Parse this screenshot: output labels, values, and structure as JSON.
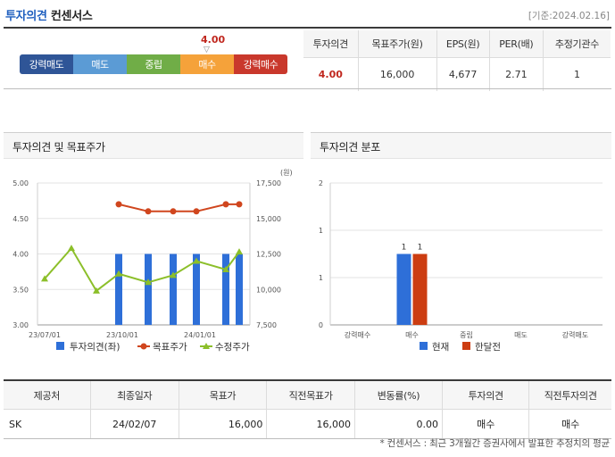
{
  "header": {
    "title_accent": "투자의견",
    "title_rest": "컨센서스",
    "date": "[기준:2024.02.16]"
  },
  "gauge": {
    "value": "4.00",
    "marker": "▽",
    "level": 4.0,
    "segments": [
      {
        "label": "강력매도",
        "color": "#2f5597"
      },
      {
        "label": "매도",
        "color": "#5b9bd5"
      },
      {
        "label": "중립",
        "color": "#70ad47"
      },
      {
        "label": "매수",
        "color": "#f5a23a"
      },
      {
        "label": "강력매수",
        "color": "#c9382c"
      }
    ]
  },
  "summary": {
    "headers": [
      "투자의견",
      "목표주가(원)",
      "EPS(원)",
      "PER(배)",
      "추정기관수"
    ],
    "values": [
      "4.00",
      "16,000",
      "4,677",
      "2.71",
      "1"
    ]
  },
  "panels": {
    "left_title": "투자의견 및 목표주가",
    "right_title": "투자의견 분포"
  },
  "chart_data": [
    {
      "type": "bar+line",
      "unit_right": "(원)",
      "x_ticks": [
        "23/07/01",
        "23/10/01",
        "24/01/01"
      ],
      "y_left_ticks": [
        "5.00",
        "4.50",
        "4.00",
        "3.50",
        "3.00"
      ],
      "y_left_range": [
        3.0,
        5.0
      ],
      "y_right_ticks": [
        "17,500",
        "15,000",
        "12,500",
        "10,000",
        "7,500"
      ],
      "y_right_range": [
        7500,
        17500
      ],
      "series": [
        {
          "name": "투자의견(좌)",
          "kind": "bar",
          "color": "#2e6fd8",
          "values": [
            null,
            null,
            null,
            4.0,
            4.0,
            4.0,
            4.0,
            4.0,
            4.0
          ]
        },
        {
          "name": "목표주가",
          "kind": "line",
          "color": "#d0461e",
          "values": [
            null,
            null,
            null,
            16000,
            15500,
            15500,
            15500,
            16000,
            16000
          ]
        },
        {
          "name": "수정주가",
          "kind": "line",
          "color": "#8cbf2a",
          "values": [
            10750,
            12900,
            9900,
            11100,
            10500,
            11000,
            12000,
            11400,
            12650
          ]
        }
      ]
    },
    {
      "type": "bar",
      "categories": [
        "강력매수",
        "매수",
        "중립",
        "매도",
        "강력매도"
      ],
      "y_ticks": [
        "2",
        "1",
        "1",
        "0"
      ],
      "ylim": [
        0,
        2
      ],
      "series": [
        {
          "name": "현재",
          "color": "#2e6fd8",
          "values": [
            0,
            1,
            0,
            0,
            0
          ]
        },
        {
          "name": "한달전",
          "color": "#cc3d12",
          "values": [
            0,
            1,
            0,
            0,
            0
          ]
        }
      ],
      "bar_labels": [
        "1",
        "1"
      ]
    }
  ],
  "detail": {
    "headers": [
      "제공처",
      "최종일자",
      "목표가",
      "직전목표가",
      "변동률(%)",
      "투자의견",
      "직전투자의견"
    ],
    "rows": [
      [
        "SK",
        "24/02/07",
        "16,000",
        "16,000",
        "0.00",
        "매수",
        "매수"
      ]
    ]
  },
  "footnote": "* 컨센서스 : 최근 3개월간 증권사에서 발표한 추정치의 평균"
}
